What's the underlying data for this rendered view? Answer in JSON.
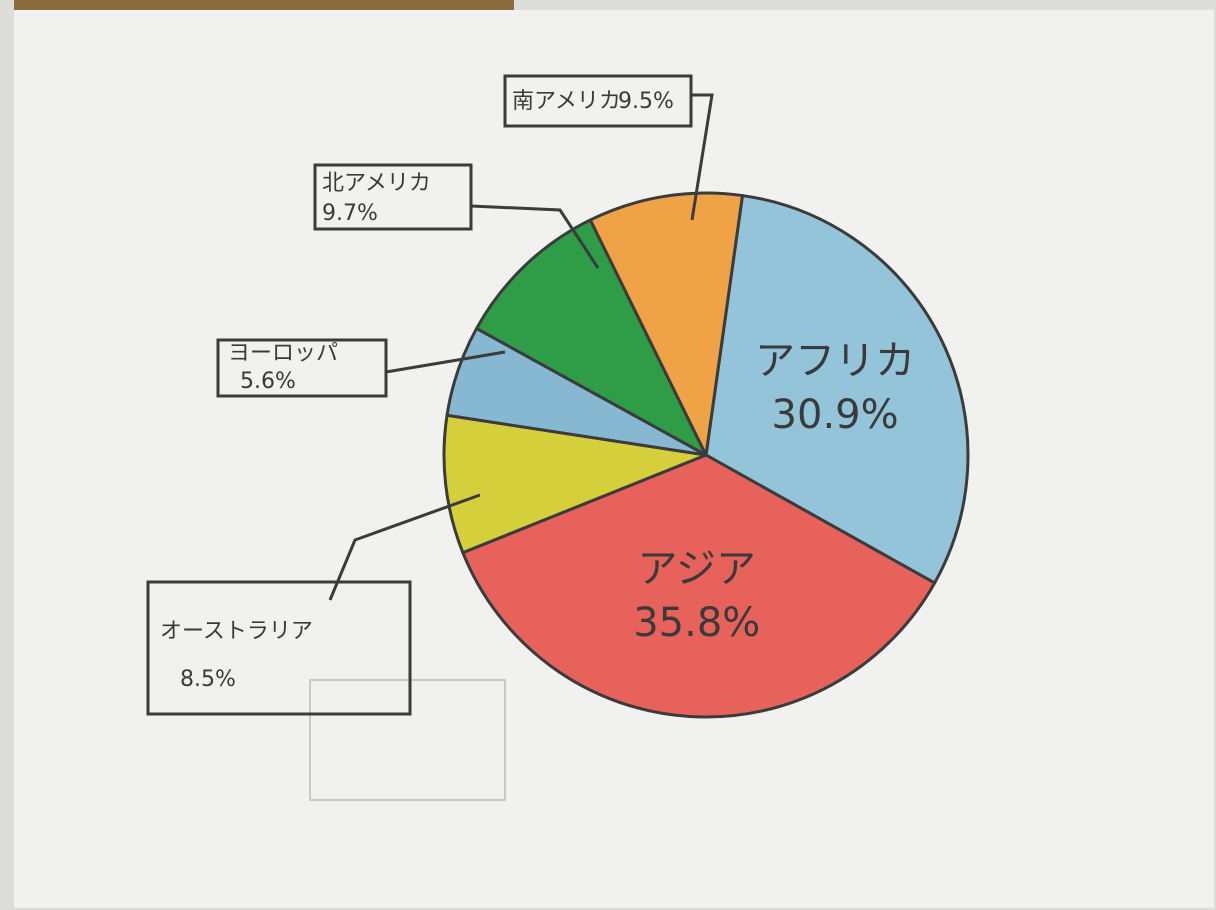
{
  "chart_data": {
    "type": "pie",
    "categories": [
      "アフリカ",
      "アジア",
      "オーストラリア",
      "ヨーロッパ",
      "北アメリカ",
      "南アメリカ"
    ],
    "values": [
      30.9,
      35.8,
      8.5,
      5.6,
      9.7,
      9.5
    ],
    "value_labels": [
      "30.9%",
      "35.8%",
      "8.5%",
      "5.6%",
      "9.7%",
      "9.5%"
    ],
    "colors": [
      "#93c4da",
      "#e8625c",
      "#d6cf3c",
      "#86b8d2",
      "#2f9d47",
      "#f0a346"
    ]
  }
}
